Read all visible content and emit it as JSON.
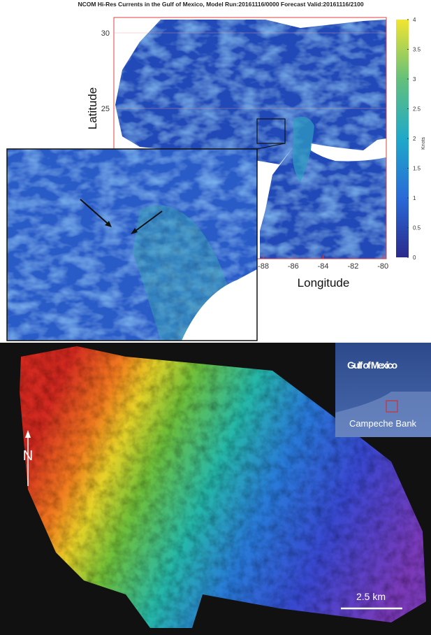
{
  "top_map": {
    "title": "NCOM Hi-Res Currents in the Gulf of Mexico, Model Run:20161116/0000 Forecast Valid:20161116/2100",
    "y_label": "Latitude",
    "x_label": "Longitude",
    "yticks": [
      30,
      25
    ],
    "xticks": [
      -88,
      -86,
      -84,
      -82,
      -80
    ],
    "colorbar": {
      "label": "Knots",
      "ticks": [
        0,
        0.5,
        1,
        1.5,
        2,
        2.5,
        3,
        3.5,
        4
      ]
    }
  },
  "bottom_image": {
    "inset": {
      "region": "Gulf of Mexico",
      "site": "Campeche Bank"
    },
    "north": "N",
    "scale": "2.5 km"
  }
}
